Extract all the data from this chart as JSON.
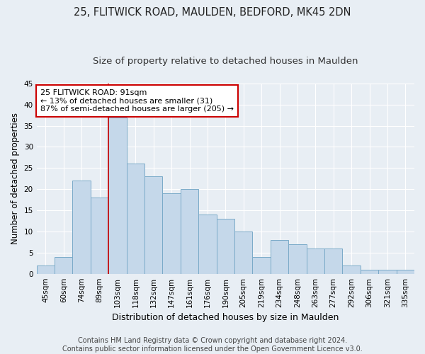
{
  "title_line1": "25, FLITWICK ROAD, MAULDEN, BEDFORD, MK45 2DN",
  "title_line2": "Size of property relative to detached houses in Maulden",
  "xlabel": "Distribution of detached houses by size in Maulden",
  "ylabel": "Number of detached properties",
  "categories": [
    "45sqm",
    "60sqm",
    "74sqm",
    "89sqm",
    "103sqm",
    "118sqm",
    "132sqm",
    "147sqm",
    "161sqm",
    "176sqm",
    "190sqm",
    "205sqm",
    "219sqm",
    "234sqm",
    "248sqm",
    "263sqm",
    "277sqm",
    "292sqm",
    "306sqm",
    "321sqm",
    "335sqm"
  ],
  "values": [
    2,
    4,
    22,
    18,
    37,
    26,
    23,
    19,
    20,
    14,
    13,
    10,
    4,
    8,
    7,
    6,
    6,
    2,
    1,
    1,
    1
  ],
  "bar_color": "#c5d8ea",
  "bar_edge_color": "#7aaac8",
  "red_line_index": 3,
  "ylim": [
    0,
    45
  ],
  "yticks": [
    0,
    5,
    10,
    15,
    20,
    25,
    30,
    35,
    40,
    45
  ],
  "annotation_text": "25 FLITWICK ROAD: 91sqm\n← 13% of detached houses are smaller (31)\n87% of semi-detached houses are larger (205) →",
  "annotation_box_facecolor": "#ffffff",
  "annotation_box_edgecolor": "#cc0000",
  "footer_line1": "Contains HM Land Registry data © Crown copyright and database right 2024.",
  "footer_line2": "Contains public sector information licensed under the Open Government Licence v3.0.",
  "background_color": "#e8eef4",
  "plot_background": "#e8eef4",
  "grid_color": "#ffffff",
  "title_fontsize": 10.5,
  "subtitle_fontsize": 9.5,
  "ylabel_fontsize": 8.5,
  "xlabel_fontsize": 9,
  "tick_fontsize": 7.5,
  "footer_fontsize": 7,
  "ann_fontsize": 8
}
